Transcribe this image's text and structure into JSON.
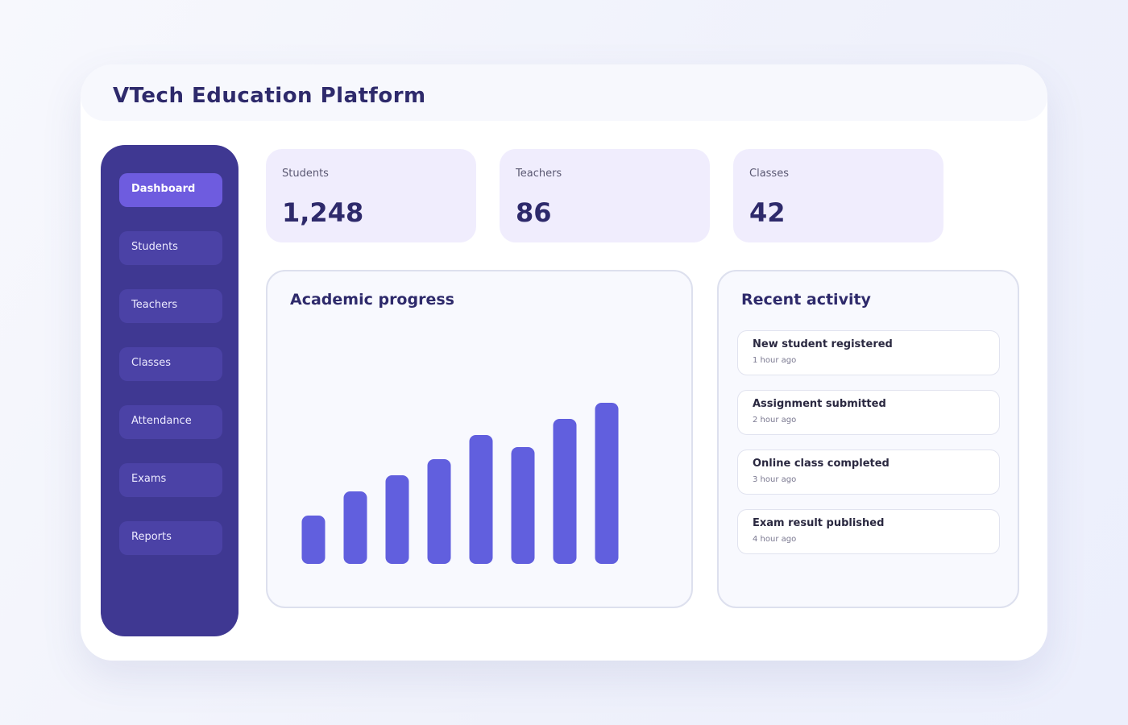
{
  "header": {
    "title": "VTech Education Platform"
  },
  "sidebar": {
    "items": [
      "Dashboard",
      "Students",
      "Teachers",
      "Classes",
      "Attendance",
      "Exams",
      "Reports"
    ],
    "active": 0
  },
  "stats": [
    {
      "label": "Students",
      "value": "1,248"
    },
    {
      "label": "Teachers",
      "value": "86"
    },
    {
      "label": "Classes",
      "value": "42"
    }
  ],
  "chart_data": {
    "type": "bar",
    "title": "Academic progress",
    "values": [
      60,
      90,
      110,
      130,
      160,
      145,
      180,
      200
    ],
    "color": "#615fde"
  },
  "activity": {
    "title": "Recent activity",
    "items": [
      {
        "title": "New student registered",
        "time": "1 hour ago"
      },
      {
        "title": "Assignment submitted",
        "time": "2 hour ago"
      },
      {
        "title": "Online class completed",
        "time": "3 hour ago"
      },
      {
        "title": "Exam result published",
        "time": "4 hour ago"
      }
    ]
  }
}
